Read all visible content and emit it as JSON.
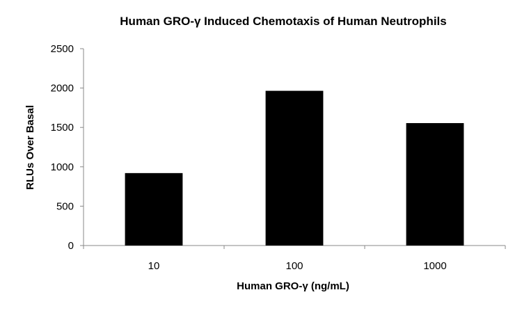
{
  "chart_data": {
    "type": "bar",
    "title": "Human GRO-γ Induced Chemotaxis of Human Neutrophils",
    "xlabel": "Human GRO-γ (ng/mL)",
    "ylabel": "RLUs Over Basal",
    "categories": [
      "10",
      "100",
      "1000"
    ],
    "values": [
      920,
      1965,
      1555
    ],
    "ylim": [
      0,
      2500
    ],
    "yticks": [
      0,
      500,
      1000,
      1500,
      2000,
      2500
    ],
    "grid": false,
    "legend": "none",
    "bar_color": "#000000",
    "axis_color": "#888888"
  }
}
